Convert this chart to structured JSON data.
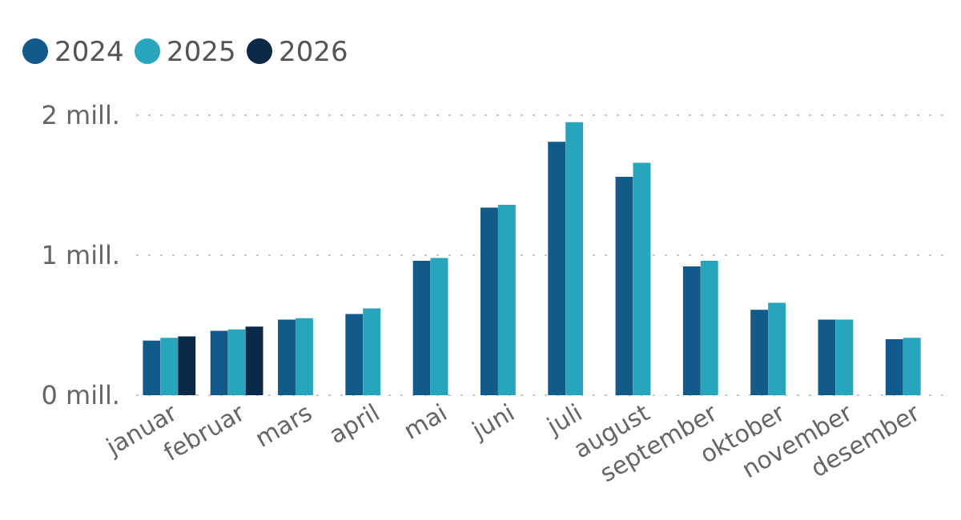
{
  "chart_data": {
    "type": "bar",
    "categories": [
      "januar",
      "februar",
      "mars",
      "april",
      "mai",
      "juni",
      "juli",
      "august",
      "september",
      "oktober",
      "november",
      "desember"
    ],
    "series": [
      {
        "name": "2024",
        "color": "#125a8a",
        "values": [
          0.39,
          0.46,
          0.54,
          0.58,
          0.96,
          1.34,
          1.81,
          1.56,
          0.92,
          0.61,
          0.54,
          0.4
        ]
      },
      {
        "name": "2025",
        "color": "#27a5bd",
        "values": [
          0.41,
          0.47,
          0.55,
          0.62,
          0.98,
          1.36,
          1.95,
          1.66,
          0.96,
          0.66,
          0.54,
          0.41
        ]
      },
      {
        "name": "2026",
        "color": "#0b2a4a",
        "values": [
          0.42,
          0.49,
          null,
          null,
          null,
          null,
          null,
          null,
          null,
          null,
          null,
          null
        ]
      }
    ],
    "ylim": [
      0,
      2
    ],
    "yticks": [
      {
        "value": 0,
        "label": "0 mill."
      },
      {
        "value": 1,
        "label": "1 mill."
      },
      {
        "value": 2,
        "label": "2 mill."
      }
    ],
    "grid": "y",
    "legend": "top left"
  }
}
